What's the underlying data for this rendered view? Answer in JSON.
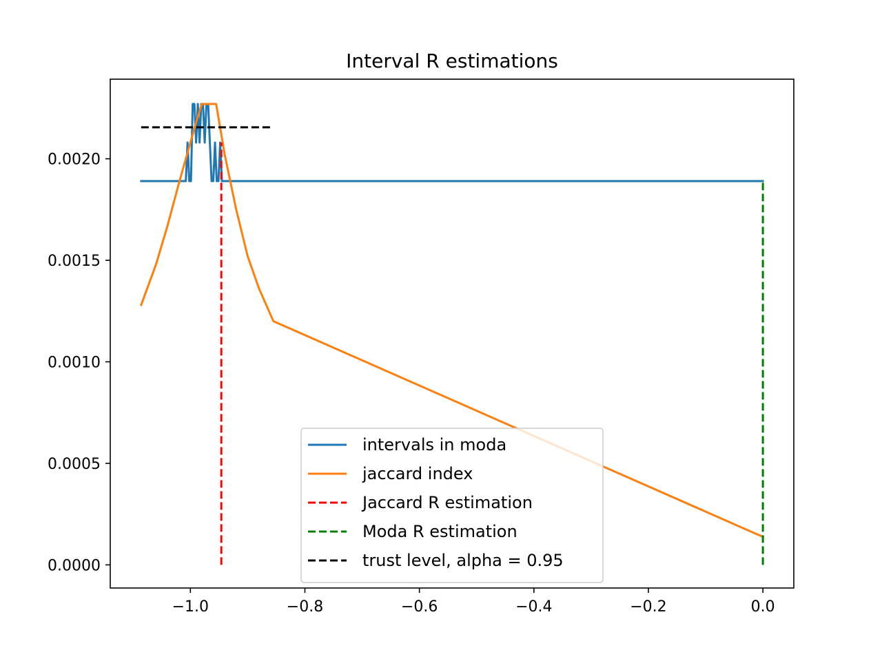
{
  "chart_data": {
    "type": "line",
    "title": "Interval R estimations",
    "xlabel": "",
    "ylabel": "",
    "xlim": [
      -1.14,
      0.054
    ],
    "ylim": [
      -0.000114,
      0.002392
    ],
    "xticks": [
      {
        "value": -1.0,
        "label": "−1.0"
      },
      {
        "value": -0.8,
        "label": "−0.8"
      },
      {
        "value": -0.6,
        "label": "−0.6"
      },
      {
        "value": -0.4,
        "label": "−0.4"
      },
      {
        "value": -0.2,
        "label": "−0.2"
      },
      {
        "value": 0.0,
        "label": "0.0"
      }
    ],
    "yticks": [
      {
        "value": 0.0,
        "label": "0.0000"
      },
      {
        "value": 0.0005,
        "label": "0.0005"
      },
      {
        "value": 0.001,
        "label": "0.0010"
      },
      {
        "value": 0.0015,
        "label": "0.0015"
      },
      {
        "value": 0.002,
        "label": "0.0020"
      }
    ],
    "grid": false,
    "legend_position": "bottom-center",
    "series": [
      {
        "name": "intervals in moda",
        "color": "#1f77b4",
        "style": "solid",
        "x": [
          -1.086,
          -1.008,
          -1.005,
          -1.002,
          -0.999,
          -0.996,
          -0.993,
          -0.99,
          -0.987,
          -0.984,
          -0.981,
          -0.978,
          -0.975,
          -0.972,
          -0.969,
          -0.966,
          -0.963,
          -0.96,
          -0.957,
          -0.954,
          -0.951,
          -0.948,
          -0.945,
          0.0
        ],
        "y": [
          0.00189,
          0.00189,
          0.00208,
          0.00189,
          0.00189,
          0.00227,
          0.00227,
          0.00208,
          0.00227,
          0.00208,
          0.00227,
          0.00227,
          0.00208,
          0.00227,
          0.00227,
          0.00208,
          0.00189,
          0.00189,
          0.00208,
          0.00189,
          0.00189,
          0.00208,
          0.00189,
          0.00189
        ]
      },
      {
        "name": "jaccard index",
        "color": "#ff7f0e",
        "style": "solid",
        "x": [
          -1.086,
          -1.06,
          -1.04,
          -1.02,
          -1.0,
          -0.99,
          -0.98,
          -0.955,
          -0.94,
          -0.92,
          -0.9,
          -0.88,
          -0.855,
          0.0
        ],
        "y": [
          0.00128,
          0.00148,
          0.00167,
          0.00188,
          0.00208,
          0.00218,
          0.00227,
          0.00227,
          0.00202,
          0.00175,
          0.00152,
          0.00136,
          0.0012,
          0.000138
        ]
      },
      {
        "name": "Jaccard R estimation",
        "color": "#ff0000",
        "style": "dashed",
        "x": [
          -0.946,
          -0.946
        ],
        "y": [
          0.0,
          0.00208
        ]
      },
      {
        "name": "Moda R estimation",
        "color": "#008000",
        "style": "dashed",
        "x": [
          0.0,
          0.0
        ],
        "y": [
          0.0,
          0.00189
        ]
      },
      {
        "name": "trust level, alpha = 0.95",
        "color": "#000000",
        "style": "dashed",
        "x": [
          -1.086,
          -0.855
        ],
        "y": [
          0.002155,
          0.002155
        ]
      }
    ]
  }
}
